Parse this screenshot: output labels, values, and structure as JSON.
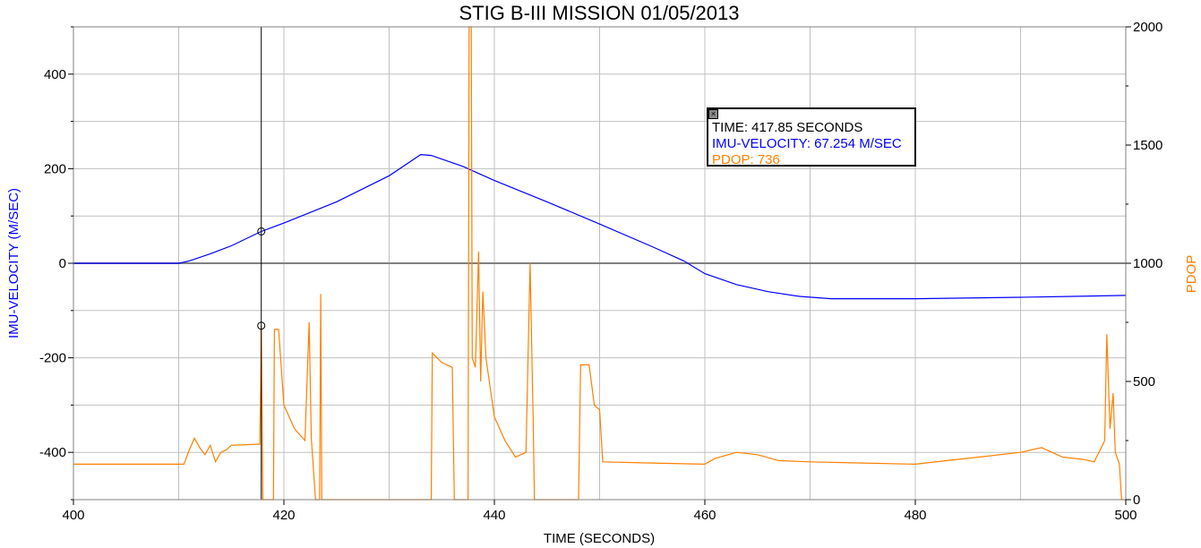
{
  "chart_data": {
    "type": "line",
    "title": "STIG B-III MISSION 01/05/2013",
    "xlabel": "TIME (SECONDS)",
    "ylabel_left": "IMU-VELOCITY (M/SEC)",
    "ylabel_right": "PDOP",
    "xlim": [
      400,
      500
    ],
    "ylim_left": [
      -500,
      500
    ],
    "ylim_right": [
      0,
      2000
    ],
    "x_ticks": [
      "400",
      "420",
      "440",
      "460",
      "480",
      "500"
    ],
    "y_left_ticks": [
      "400",
      "200",
      "0",
      "-200",
      "-400"
    ],
    "y_right_ticks": [
      "2000",
      "1500",
      "1000",
      "500",
      "0"
    ],
    "grid": true,
    "colors": {
      "velocity": "#0000ff",
      "pdop": "#ff8000"
    },
    "series": [
      {
        "name": "IMU-VELOCITY",
        "axis": "left",
        "points": [
          [
            400,
            0
          ],
          [
            410,
            0
          ],
          [
            411,
            5
          ],
          [
            413,
            20
          ],
          [
            415,
            37
          ],
          [
            417.85,
            67.254
          ],
          [
            420,
            85
          ],
          [
            425,
            130
          ],
          [
            430,
            185
          ],
          [
            433,
            230
          ],
          [
            434,
            228
          ],
          [
            437,
            205
          ],
          [
            440,
            175
          ],
          [
            445,
            130
          ],
          [
            450,
            83
          ],
          [
            455,
            35
          ],
          [
            458,
            5
          ],
          [
            460,
            -22
          ],
          [
            463,
            -45
          ],
          [
            466,
            -60
          ],
          [
            469,
            -70
          ],
          [
            472,
            -75
          ],
          [
            480,
            -75
          ],
          [
            490,
            -72
          ],
          [
            495,
            -70
          ],
          [
            500,
            -68
          ]
        ]
      },
      {
        "name": "PDOP",
        "axis": "right",
        "points": [
          [
            400,
            150
          ],
          [
            410.5,
            150
          ],
          [
            411,
            210
          ],
          [
            411.5,
            260
          ],
          [
            412,
            220
          ],
          [
            412.5,
            190
          ],
          [
            413,
            230
          ],
          [
            413.5,
            160
          ],
          [
            414,
            200
          ],
          [
            414.5,
            210
          ],
          [
            415,
            230
          ],
          [
            417.7,
            235
          ],
          [
            417.8,
            500
          ],
          [
            417.85,
            736
          ],
          [
            418,
            0
          ],
          [
            419,
            0
          ],
          [
            419.1,
            720
          ],
          [
            419.5,
            720
          ],
          [
            420,
            400
          ],
          [
            420.5,
            350
          ],
          [
            421,
            300
          ],
          [
            422,
            250
          ],
          [
            422.4,
            750
          ],
          [
            422.6,
            260
          ],
          [
            423,
            0
          ],
          [
            423.4,
            0
          ],
          [
            423.5,
            870
          ],
          [
            423.6,
            0
          ],
          [
            434,
            0
          ],
          [
            434.1,
            620
          ],
          [
            435,
            580
          ],
          [
            436,
            560
          ],
          [
            436.2,
            0
          ],
          [
            437.5,
            0
          ],
          [
            437.6,
            2000
          ],
          [
            437.8,
            2000
          ],
          [
            437.9,
            600
          ],
          [
            438.2,
            560
          ],
          [
            438.5,
            1050
          ],
          [
            438.7,
            500
          ],
          [
            438.9,
            880
          ],
          [
            439.2,
            600
          ],
          [
            440,
            350
          ],
          [
            441,
            250
          ],
          [
            442,
            180
          ],
          [
            443,
            200
          ],
          [
            443.4,
            1000
          ],
          [
            443.7,
            300
          ],
          [
            443.8,
            0
          ],
          [
            448,
            0
          ],
          [
            448.2,
            570
          ],
          [
            449,
            570
          ],
          [
            449.5,
            400
          ],
          [
            450,
            380
          ],
          [
            450.3,
            160
          ],
          [
            455,
            155
          ],
          [
            460,
            150
          ],
          [
            461,
            175
          ],
          [
            463,
            200
          ],
          [
            465,
            190
          ],
          [
            467,
            165
          ],
          [
            470,
            160
          ],
          [
            475,
            155
          ],
          [
            480,
            150
          ],
          [
            483,
            165
          ],
          [
            486,
            180
          ],
          [
            490,
            200
          ],
          [
            492,
            220
          ],
          [
            494,
            180
          ],
          [
            496,
            170
          ],
          [
            497,
            160
          ],
          [
            498,
            250
          ],
          [
            498.2,
            700
          ],
          [
            498.5,
            300
          ],
          [
            498.8,
            450
          ],
          [
            499,
            200
          ],
          [
            499.4,
            150
          ],
          [
            499.6,
            0
          ],
          [
            500,
            0
          ]
        ]
      }
    ],
    "tooltip": {
      "time": "TIME: 417.85 SECONDS",
      "velocity": "IMU-VELOCITY: 67.254 M/SEC",
      "pdop": "PDOP: 736",
      "cursor_x": 417.85,
      "cursor_velocity": 67.254,
      "cursor_pdop": 736,
      "close_icon": "close-icon"
    }
  }
}
